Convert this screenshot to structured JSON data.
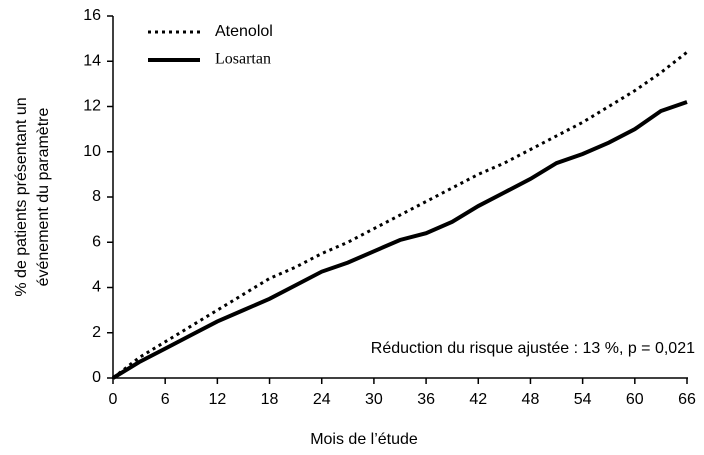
{
  "chart_data": {
    "type": "line",
    "xlabel": "Mois de l’étude",
    "ylabel": [
      "% de patients présentant un",
      "événement du paramètre"
    ],
    "annotation": "Réduction du risque ajustée : 13 %, p = 0,021",
    "x": [
      0,
      3,
      6,
      9,
      12,
      15,
      18,
      21,
      24,
      27,
      30,
      33,
      36,
      39,
      42,
      45,
      48,
      51,
      54,
      57,
      60,
      63,
      66
    ],
    "series": [
      {
        "name": "Atenolol",
        "color": "#000000",
        "dash": "dotted",
        "values": [
          0,
          0.9,
          1.6,
          2.3,
          3.0,
          3.7,
          4.4,
          4.9,
          5.5,
          6.0,
          6.6,
          7.2,
          7.8,
          8.4,
          9.0,
          9.5,
          10.1,
          10.7,
          11.3,
          12.0,
          12.7,
          13.5,
          14.4
        ]
      },
      {
        "name": "Losartan",
        "color": "#000000",
        "dash": "solid",
        "values": [
          0,
          0.7,
          1.3,
          1.9,
          2.5,
          3.0,
          3.5,
          4.1,
          4.7,
          5.1,
          5.6,
          6.1,
          6.4,
          6.9,
          7.6,
          8.2,
          8.8,
          9.5,
          9.9,
          10.4,
          11.0,
          11.8,
          12.2
        ]
      }
    ],
    "xlim": [
      0,
      66
    ],
    "xticks": [
      0,
      6,
      12,
      18,
      24,
      30,
      36,
      42,
      48,
      54,
      60,
      66
    ],
    "ylim": [
      0,
      16
    ],
    "yticks": [
      0,
      2,
      4,
      6,
      8,
      10,
      12,
      14,
      16
    ],
    "legend": "upper left",
    "grid": false
  }
}
